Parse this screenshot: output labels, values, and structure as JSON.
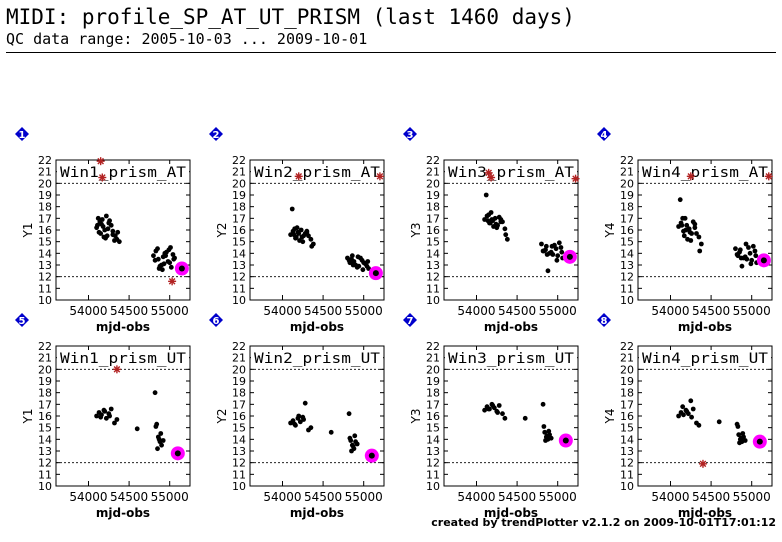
{
  "header": {
    "title": "MIDI: profile_SP_AT_UT_PRISM (last 1460 days)",
    "subtitle": "QC data range: 2005-10-03 ... 2009-10-01"
  },
  "footer": {
    "credit": "created by trendPlotter v2.1.2 on 2009-10-01T17:01:12"
  },
  "colors": {
    "points": "#000000",
    "outlier": "#b22222",
    "latest_marker": "#ff00ff",
    "badge": "#0000cc"
  },
  "chart_data": [
    {
      "type": "scatter",
      "index": "1",
      "title": "Win1_prism_AT",
      "xlabel": "mjd-obs",
      "ylabel": "Y1",
      "xlim": [
        53600,
        55250
      ],
      "ylim": [
        10,
        22
      ],
      "xticks": [
        54000,
        54500,
        55000
      ],
      "yticks": [
        10,
        11,
        12,
        13,
        14,
        15,
        16,
        17,
        18,
        19,
        20,
        21,
        22
      ],
      "ref_lines": [
        20,
        12
      ],
      "points": {
        "x": [
          54100,
          54130,
          54160,
          54200,
          54230,
          54260,
          54300,
          54350,
          54120,
          54180,
          54240,
          54300,
          54380,
          54140,
          54210,
          54280,
          54150,
          54170,
          54190,
          54250,
          54320,
          54360,
          54110,
          54220,
          54330,
          54800,
          54830,
          54860,
          54900,
          54940,
          54980,
          55020,
          55060,
          54850,
          54880,
          54920,
          54960,
          55000,
          55040,
          54820,
          54870,
          54930,
          54990,
          55050,
          54910,
          54950,
          55010
        ],
        "y": [
          16.2,
          15.8,
          16.5,
          16.0,
          15.5,
          16.8,
          15.9,
          15.2,
          17.0,
          16.3,
          16.1,
          15.6,
          15.0,
          16.7,
          15.3,
          16.4,
          15.7,
          16.9,
          15.4,
          16.6,
          15.1,
          15.8,
          16.4,
          17.2,
          15.5,
          13.8,
          14.2,
          13.5,
          13.0,
          14.0,
          13.3,
          12.8,
          13.6,
          14.4,
          12.9,
          13.7,
          14.1,
          13.2,
          13.9,
          13.4,
          12.7,
          13.1,
          14.3,
          13.5,
          12.6,
          13.8,
          14.5
        ]
      },
      "outliers": {
        "x": [
          54150,
          54170,
          55030
        ],
        "y": [
          21.9,
          20.5,
          11.6
        ]
      },
      "latest": {
        "x": 55150,
        "y": 12.7
      }
    },
    {
      "type": "scatter",
      "index": "2",
      "title": "Win2_prism_AT",
      "xlabel": "mjd-obs",
      "ylabel": "Y2",
      "xlim": [
        53600,
        55250
      ],
      "ylim": [
        10,
        22
      ],
      "xticks": [
        54000,
        54500,
        55000
      ],
      "yticks": [
        10,
        11,
        12,
        13,
        14,
        15,
        16,
        17,
        18,
        19,
        20,
        21,
        22
      ],
      "ref_lines": [
        20,
        12
      ],
      "points": {
        "x": [
          54100,
          54130,
          54160,
          54200,
          54230,
          54260,
          54300,
          54350,
          54120,
          54180,
          54240,
          54300,
          54380,
          54140,
          54210,
          54280,
          54150,
          54170,
          54190,
          54250,
          54320,
          54360,
          54800,
          54830,
          54860,
          54900,
          54940,
          54980,
          55020,
          55060,
          54850,
          54880,
          54920,
          54960,
          55000,
          55040,
          54820,
          54870,
          54930,
          54990,
          55050
        ],
        "y": [
          15.6,
          15.9,
          15.3,
          15.7,
          16.0,
          15.5,
          15.8,
          15.2,
          17.8,
          16.2,
          15.4,
          15.9,
          14.8,
          15.6,
          15.1,
          15.7,
          16.1,
          15.4,
          15.8,
          15.0,
          15.5,
          14.6,
          13.6,
          13.2,
          13.8,
          13.0,
          12.9,
          13.4,
          13.1,
          12.7,
          13.5,
          13.3,
          12.8,
          13.6,
          13.2,
          12.9,
          13.4,
          13.0,
          13.7,
          12.6,
          13.3
        ]
      },
      "outliers": {
        "x": [
          54200,
          55200
        ],
        "y": [
          20.6,
          20.6
        ]
      },
      "latest": {
        "x": 55150,
        "y": 12.3
      }
    },
    {
      "type": "scatter",
      "index": "3",
      "title": "Win3_prism_AT",
      "xlabel": "mjd-obs",
      "ylabel": "Y3",
      "xlim": [
        53600,
        55250
      ],
      "ylim": [
        10,
        22
      ],
      "xticks": [
        54000,
        54500,
        55000
      ],
      "yticks": [
        10,
        11,
        12,
        13,
        14,
        15,
        16,
        17,
        18,
        19,
        20,
        21,
        22
      ],
      "ref_lines": [
        20,
        12
      ],
      "points": {
        "x": [
          54100,
          54130,
          54160,
          54200,
          54230,
          54260,
          54300,
          54350,
          54120,
          54180,
          54240,
          54300,
          54380,
          54140,
          54210,
          54280,
          54150,
          54170,
          54190,
          54250,
          54320,
          54360,
          54800,
          54830,
          54860,
          54900,
          54940,
          54980,
          55020,
          55060,
          54850,
          54880,
          54920,
          54960,
          55000,
          55040,
          54820,
          54870,
          54930,
          54990,
          55050
        ],
        "y": [
          16.9,
          17.2,
          16.6,
          16.8,
          17.0,
          16.4,
          16.7,
          16.1,
          19.0,
          17.5,
          16.5,
          16.9,
          15.2,
          16.8,
          16.3,
          17.1,
          17.3,
          16.6,
          16.9,
          16.2,
          16.7,
          15.6,
          14.8,
          14.2,
          14.6,
          14.0,
          13.9,
          14.4,
          14.9,
          13.6,
          14.3,
          12.5,
          14.1,
          14.7,
          13.8,
          14.5,
          14.2,
          13.9,
          14.6,
          13.4,
          14.1
        ]
      },
      "outliers": {
        "x": [
          54150,
          54180,
          55220
        ],
        "y": [
          20.9,
          20.5,
          20.4
        ]
      },
      "latest": {
        "x": 55150,
        "y": 13.7
      }
    },
    {
      "type": "scatter",
      "index": "4",
      "title": "Win4_prism_AT",
      "xlabel": "mjd-obs",
      "ylabel": "Y4",
      "xlim": [
        53600,
        55250
      ],
      "ylim": [
        10,
        22
      ],
      "xticks": [
        54000,
        54500,
        55000
      ],
      "yticks": [
        10,
        11,
        12,
        13,
        14,
        15,
        16,
        17,
        18,
        19,
        20,
        21,
        22
      ],
      "ref_lines": [
        20,
        12
      ],
      "points": {
        "x": [
          54100,
          54130,
          54160,
          54200,
          54230,
          54260,
          54300,
          54350,
          54120,
          54180,
          54240,
          54300,
          54380,
          54140,
          54210,
          54280,
          54150,
          54170,
          54190,
          54250,
          54320,
          54360,
          54800,
          54830,
          54860,
          54900,
          54940,
          54980,
          55020,
          55060,
          54850,
          54880,
          54920,
          54960,
          55000,
          55040,
          54820,
          54870,
          54930,
          54990,
          55050
        ],
        "y": [
          16.3,
          16.6,
          15.9,
          16.4,
          16.1,
          15.7,
          16.2,
          15.4,
          18.6,
          17.0,
          15.8,
          16.5,
          14.8,
          16.4,
          15.2,
          16.7,
          17.0,
          15.5,
          16.0,
          15.1,
          15.7,
          14.2,
          14.4,
          13.8,
          14.3,
          13.6,
          13.5,
          14.0,
          14.6,
          13.2,
          14.1,
          12.9,
          13.7,
          14.5,
          13.4,
          14.2,
          13.9,
          13.6,
          14.8,
          13.1,
          13.8
        ]
      },
      "outliers": {
        "x": [
          54250,
          55210
        ],
        "y": [
          20.6,
          20.6
        ]
      },
      "latest": {
        "x": 55150,
        "y": 13.4
      }
    },
    {
      "type": "scatter",
      "index": "5",
      "title": "Win1_prism_UT",
      "xlabel": "mjd-obs",
      "ylabel": "Y1",
      "xlim": [
        53600,
        55250
      ],
      "ylim": [
        10,
        22
      ],
      "xticks": [
        54000,
        54500,
        55000
      ],
      "yticks": [
        10,
        11,
        12,
        13,
        14,
        15,
        16,
        17,
        18,
        19,
        20,
        21,
        22
      ],
      "ref_lines": [
        20,
        12
      ],
      "points": {
        "x": [
          54100,
          54130,
          54160,
          54190,
          54220,
          54250,
          54280,
          54320,
          54350,
          54150,
          54200,
          54260,
          54600,
          54820,
          54840,
          54860,
          54880,
          54900,
          54830,
          54870,
          54850,
          54890,
          54920
        ],
        "y": [
          16.0,
          16.3,
          16.1,
          16.5,
          15.8,
          16.2,
          16.6,
          15.4,
          15.7,
          15.9,
          16.4,
          16.0,
          14.9,
          18.0,
          15.3,
          14.2,
          13.8,
          13.5,
          15.1,
          14.0,
          13.2,
          14.5,
          13.9
        ]
      },
      "outliers": {
        "x": [
          54350
        ],
        "y": [
          20.0
        ]
      },
      "latest": {
        "x": 55100,
        "y": 12.8
      }
    },
    {
      "type": "scatter",
      "index": "6",
      "title": "Win2_prism_UT",
      "xlabel": "mjd-obs",
      "ylabel": "Y2",
      "xlim": [
        53600,
        55250
      ],
      "ylim": [
        10,
        22
      ],
      "xticks": [
        54000,
        54500,
        55000
      ],
      "yticks": [
        10,
        11,
        12,
        13,
        14,
        15,
        16,
        17,
        18,
        19,
        20,
        21,
        22
      ],
      "ref_lines": [
        20,
        12
      ],
      "points": {
        "x": [
          54100,
          54130,
          54160,
          54190,
          54220,
          54250,
          54280,
          54320,
          54350,
          54150,
          54200,
          54260,
          54600,
          54820,
          54840,
          54860,
          54880,
          54900,
          54830,
          54870,
          54850,
          54890,
          54920
        ],
        "y": [
          15.4,
          15.6,
          15.2,
          15.8,
          15.5,
          15.9,
          17.1,
          14.8,
          15.0,
          15.3,
          16.0,
          15.7,
          14.6,
          16.2,
          13.9,
          13.5,
          13.2,
          13.8,
          14.1,
          13.4,
          13.0,
          14.3,
          13.6
        ]
      },
      "outliers": {
        "x": [],
        "y": []
      },
      "latest": {
        "x": 55100,
        "y": 12.6
      }
    },
    {
      "type": "scatter",
      "index": "7",
      "title": "Win3_prism_UT",
      "xlabel": "mjd-obs",
      "ylabel": "Y3",
      "xlim": [
        53600,
        55250
      ],
      "ylim": [
        10,
        22
      ],
      "xticks": [
        54000,
        54500,
        55000
      ],
      "yticks": [
        10,
        11,
        12,
        13,
        14,
        15,
        16,
        17,
        18,
        19,
        20,
        21,
        22
      ],
      "ref_lines": [
        20,
        12
      ],
      "points": {
        "x": [
          54100,
          54130,
          54160,
          54190,
          54220,
          54250,
          54280,
          54320,
          54350,
          54150,
          54200,
          54260,
          54600,
          54820,
          54840,
          54860,
          54880,
          54900,
          54830,
          54870,
          54850,
          54890,
          54920
        ],
        "y": [
          16.5,
          16.8,
          16.6,
          17.0,
          16.7,
          16.4,
          16.9,
          16.2,
          15.8,
          16.6,
          16.9,
          16.3,
          15.8,
          17.0,
          14.6,
          14.2,
          14.0,
          14.4,
          15.1,
          14.3,
          13.9,
          14.7,
          14.1
        ]
      },
      "outliers": {
        "x": [],
        "y": []
      },
      "latest": {
        "x": 55100,
        "y": 13.9
      }
    },
    {
      "type": "scatter",
      "index": "8",
      "title": "Win4_prism_UT",
      "xlabel": "mjd-obs",
      "ylabel": "Y4",
      "xlim": [
        53600,
        55250
      ],
      "ylim": [
        10,
        22
      ],
      "xticks": [
        54000,
        54500,
        55000
      ],
      "yticks": [
        10,
        11,
        12,
        13,
        14,
        15,
        16,
        17,
        18,
        19,
        20,
        21,
        22
      ],
      "ref_lines": [
        20,
        12
      ],
      "points": {
        "x": [
          54100,
          54130,
          54160,
          54190,
          54220,
          54250,
          54280,
          54320,
          54350,
          54150,
          54200,
          54260,
          54600,
          54820,
          54840,
          54860,
          54880,
          54900,
          54830,
          54870,
          54850,
          54890,
          54920
        ],
        "y": [
          16.0,
          16.3,
          16.1,
          16.5,
          16.2,
          17.3,
          16.6,
          15.4,
          15.2,
          16.8,
          16.4,
          15.9,
          15.5,
          15.3,
          14.4,
          14.0,
          13.8,
          14.2,
          15.1,
          14.1,
          13.7,
          14.5,
          13.9
        ]
      },
      "outliers": {
        "x": [
          54400
        ],
        "y": [
          11.9
        ]
      },
      "latest": {
        "x": 55100,
        "y": 13.8
      }
    }
  ]
}
